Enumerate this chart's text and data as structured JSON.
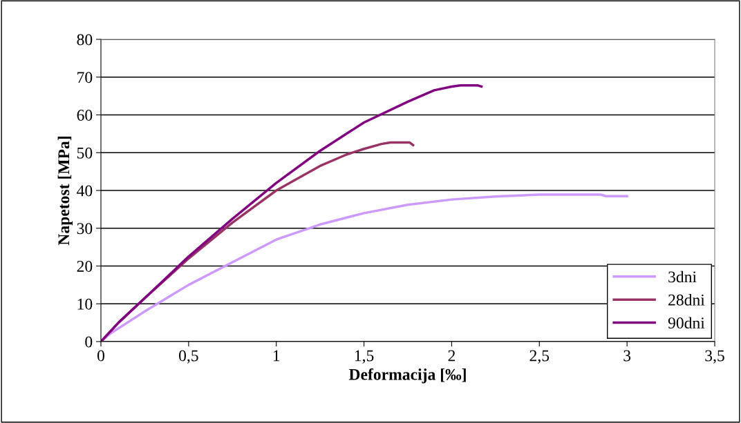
{
  "chart_data": {
    "type": "line",
    "xlabel": "Deformacija [‰]",
    "ylabel": "Napetost [MPa]",
    "xlim": [
      0,
      3.5
    ],
    "xticks": [
      0,
      {
        "value": 0.5,
        "label": "0,5"
      },
      1,
      {
        "value": 1.5,
        "label": "1,5"
      },
      2,
      {
        "value": 2.5,
        "label": "2,5"
      },
      3,
      {
        "value": 3.5,
        "label": "3,5"
      }
    ],
    "ylim": [
      0,
      80
    ],
    "yticks": [
      0,
      10,
      20,
      30,
      40,
      50,
      60,
      70,
      80
    ],
    "grid": "y",
    "legend": "bottom right",
    "marker": "none",
    "line_style": "solid",
    "series": [
      {
        "name": "3dni",
        "color": "#cc99ff",
        "x": [
          0,
          0.05,
          0.1,
          0.25,
          0.5,
          0.75,
          1.0,
          1.25,
          1.5,
          1.75,
          2.0,
          2.25,
          2.5,
          2.7,
          2.85,
          2.88,
          3.0
        ],
        "values": [
          0,
          2,
          3.5,
          8,
          15,
          21,
          27,
          31,
          34,
          36.2,
          37.6,
          38.4,
          38.9,
          38.9,
          38.9,
          38.5,
          38.5
        ]
      },
      {
        "name": "28dni",
        "color": "#993366",
        "x": [
          0,
          0.1,
          0.25,
          0.5,
          0.75,
          1.0,
          1.25,
          1.4,
          1.5,
          1.6,
          1.65,
          1.76,
          1.78
        ],
        "values": [
          0,
          5,
          11.5,
          22,
          31.5,
          40,
          46.5,
          49.5,
          51,
          52.3,
          52.7,
          52.7,
          52
        ]
      },
      {
        "name": "90dni",
        "color": "#800080",
        "x": [
          0,
          0.1,
          0.25,
          0.5,
          0.75,
          1.0,
          1.25,
          1.5,
          1.75,
          1.9,
          2.0,
          2.05,
          2.15,
          2.17
        ],
        "values": [
          0,
          5,
          11.5,
          22.5,
          32.5,
          42,
          50.5,
          58,
          63.5,
          66.5,
          67.5,
          67.8,
          67.8,
          67.5
        ]
      }
    ]
  }
}
